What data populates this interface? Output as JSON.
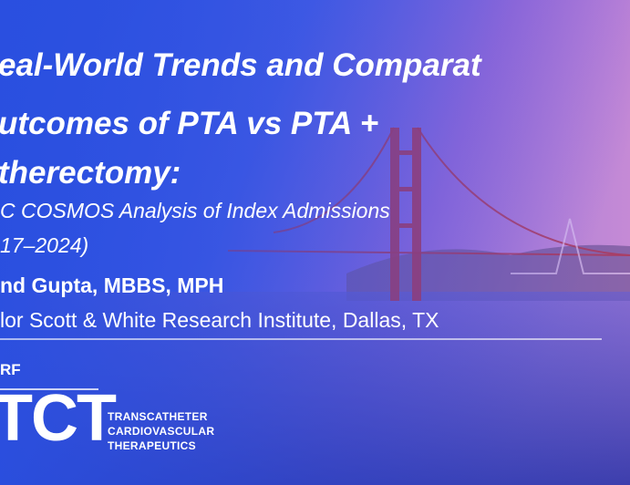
{
  "slide": {
    "title_lines": [
      "eal-World Trends and Comparat",
      "utcomes of PTA vs PTA +",
      "therectomy:"
    ],
    "subtitle_lines": [
      "C COSMOS Analysis of Index Admissions",
      "17–2024)"
    ],
    "presenter": "nd Gupta, MBBS, MPH",
    "affiliation": "lor Scott & White Research Institute, Dallas, TX",
    "logo": {
      "org": "RF",
      "mark": "TCT",
      "lines": [
        "TRANSCATHETER",
        "CARDIOVASCULAR",
        "THERAPEUTICS"
      ]
    }
  }
}
